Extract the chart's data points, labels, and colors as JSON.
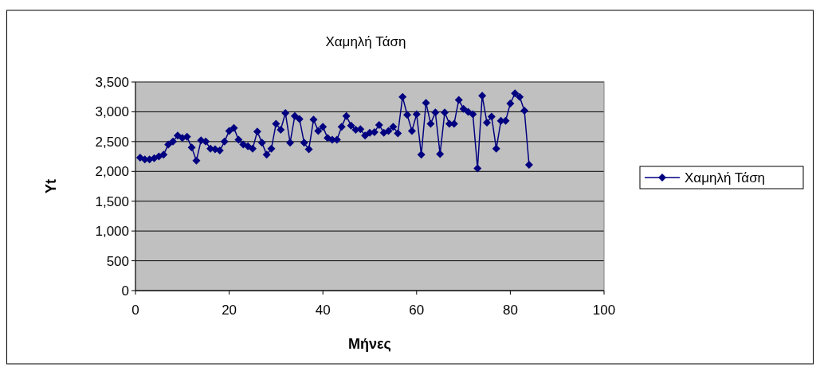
{
  "chart_data": {
    "type": "line",
    "title": "Χαμηλή Τάση",
    "xlabel": "Μήνες",
    "ylabel": "Yt",
    "x": [
      1,
      2,
      3,
      4,
      5,
      6,
      7,
      8,
      9,
      10,
      11,
      12,
      13,
      14,
      15,
      16,
      17,
      18,
      19,
      20,
      21,
      22,
      23,
      24,
      25,
      26,
      27,
      28,
      29,
      30,
      31,
      32,
      33,
      34,
      35,
      36,
      37,
      38,
      39,
      40,
      41,
      42,
      43,
      44,
      45,
      46,
      47,
      48,
      49,
      50,
      51,
      52,
      53,
      54,
      55,
      56,
      57,
      58,
      59,
      60,
      61,
      62,
      63,
      64,
      65,
      66,
      67,
      68,
      69,
      70,
      71,
      72,
      73,
      74,
      75,
      76,
      77,
      78,
      79,
      80,
      81,
      82,
      83,
      84
    ],
    "series": [
      {
        "name": "Χαμηλή Τάση",
        "color": "#000080",
        "values": [
          2230,
          2200,
          2200,
          2220,
          2250,
          2280,
          2450,
          2500,
          2600,
          2560,
          2580,
          2400,
          2180,
          2520,
          2500,
          2380,
          2370,
          2350,
          2500,
          2680,
          2730,
          2530,
          2450,
          2420,
          2380,
          2670,
          2480,
          2280,
          2380,
          2800,
          2700,
          2980,
          2480,
          2930,
          2880,
          2480,
          2370,
          2870,
          2680,
          2750,
          2560,
          2530,
          2530,
          2750,
          2930,
          2770,
          2700,
          2710,
          2600,
          2650,
          2660,
          2780,
          2650,
          2680,
          2750,
          2640,
          3250,
          2950,
          2680,
          2960,
          2280,
          3150,
          2800,
          2990,
          2290,
          2990,
          2800,
          2800,
          3200,
          3050,
          3000,
          2960,
          2050,
          3270,
          2820,
          2920,
          2380,
          2850,
          2850,
          3140,
          3310,
          3250,
          3020,
          2110
        ]
      }
    ],
    "xlim": [
      0,
      100
    ],
    "xticks": [
      0,
      20,
      40,
      60,
      80,
      100
    ],
    "ylim": [
      0,
      3500
    ],
    "yticks": [
      {
        "value": 0,
        "label": "0"
      },
      {
        "value": 500,
        "label": "500"
      },
      {
        "value": 1000,
        "label": "1,000"
      },
      {
        "value": 1500,
        "label": "1,500"
      },
      {
        "value": 2000,
        "label": "2,000"
      },
      {
        "value": 2500,
        "label": "2,500"
      },
      {
        "value": 3000,
        "label": "3,000"
      },
      {
        "value": 3500,
        "label": "3,500"
      }
    ],
    "grid": "y",
    "legend": "right",
    "marker": "diamond",
    "line_style": "solid"
  }
}
